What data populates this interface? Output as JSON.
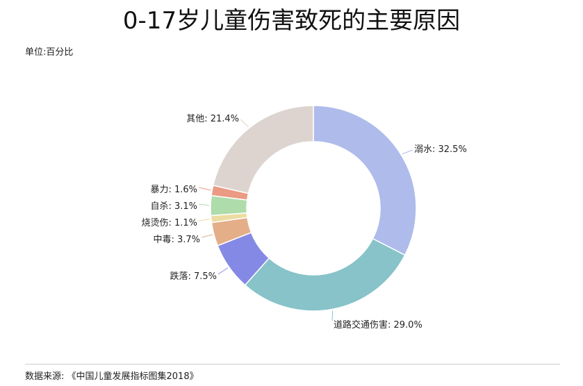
{
  "chart_data": {
    "type": "pie",
    "style": "donut",
    "title": "0-17岁儿童伤害致死的主要原因",
    "unit_note": "单位:百分比",
    "source": "数据来源: 《中国儿童发展指标图集2018》",
    "label_format": "{name}: {value}%",
    "slices": [
      {
        "name": "溺水",
        "value": 32.5,
        "color": "#aebbeb"
      },
      {
        "name": "道路交通伤害",
        "value": 29.0,
        "color": "#87c3c9"
      },
      {
        "name": "跌落",
        "value": 7.5,
        "color": "#8589e6"
      },
      {
        "name": "中毒",
        "value": 3.7,
        "color": "#e3ae88"
      },
      {
        "name": "烧烫伤",
        "value": 1.1,
        "color": "#ecdca1"
      },
      {
        "name": "自杀",
        "value": 3.1,
        "color": "#aedcab"
      },
      {
        "name": "暴力",
        "value": 1.6,
        "color": "#eb9a84"
      },
      {
        "name": "其他",
        "value": 21.4,
        "color": "#ddd4d0"
      }
    ]
  }
}
